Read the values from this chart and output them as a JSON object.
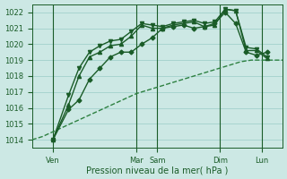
{
  "bg_color": "#cce8e4",
  "grid_color": "#99ccc6",
  "line_color_dark": "#1a5c28",
  "line_color_dashed": "#2d8040",
  "xlabel": "Pression niveau de la mer( hPa )",
  "ylim": [
    1013.5,
    1022.5
  ],
  "yticks": [
    1014,
    1015,
    1016,
    1017,
    1018,
    1019,
    1020,
    1021,
    1022
  ],
  "xlim": [
    0,
    24
  ],
  "vlines_x": [
    2.0,
    10.0,
    12.0,
    18.0,
    22.0
  ],
  "xtick_positions": [
    2.0,
    10.0,
    12.0,
    18.0,
    22.0
  ],
  "xtick_labels": [
    "Ven",
    "Mar",
    "Sam",
    "Dim",
    "Lun"
  ],
  "series_dashed": {
    "x": [
      0,
      1,
      2,
      3,
      4,
      5,
      6,
      7,
      8,
      9,
      10,
      11,
      12,
      13,
      14,
      15,
      16,
      17,
      18,
      19,
      20,
      21,
      22,
      23,
      24
    ],
    "y": [
      1014.0,
      1014.2,
      1014.5,
      1014.8,
      1015.1,
      1015.4,
      1015.7,
      1016.0,
      1016.3,
      1016.6,
      1016.9,
      1017.1,
      1017.3,
      1017.5,
      1017.7,
      1017.9,
      1018.1,
      1018.3,
      1018.5,
      1018.7,
      1018.9,
      1019.0,
      1019.0,
      1019.0,
      1019.0
    ]
  },
  "series_solid": [
    {
      "x": [
        2.0,
        3.5,
        4.5,
        5.5,
        6.5,
        7.5,
        8.5,
        9.5,
        10.5,
        11.5,
        12.5,
        13.5,
        14.5,
        15.5,
        16.5,
        17.5,
        18.5,
        19.5,
        20.5,
        21.5,
        22.5
      ],
      "y": [
        1014.0,
        1015.9,
        1016.5,
        1017.8,
        1018.5,
        1019.2,
        1019.5,
        1019.5,
        1020.0,
        1020.4,
        1021.0,
        1021.1,
        1021.2,
        1021.0,
        1021.1,
        1021.3,
        1022.0,
        1021.3,
        1019.5,
        1019.3,
        1019.5
      ],
      "marker": "D",
      "ms": 2.5
    },
    {
      "x": [
        2.0,
        3.5,
        4.5,
        5.5,
        6.5,
        7.5,
        8.5,
        9.5,
        10.5,
        11.5,
        12.5,
        13.5,
        14.5,
        15.5,
        16.5,
        17.5,
        18.5,
        19.5,
        20.5,
        21.5,
        22.5
      ],
      "y": [
        1014.0,
        1016.2,
        1018.0,
        1019.2,
        1019.5,
        1019.9,
        1020.0,
        1020.5,
        1021.2,
        1021.0,
        1021.0,
        1021.2,
        1021.3,
        1021.4,
        1021.1,
        1021.2,
        1022.2,
        1022.1,
        1019.6,
        1019.6,
        1019.1
      ],
      "marker": "^",
      "ms": 3.0
    },
    {
      "x": [
        2.0,
        3.5,
        4.5,
        5.5,
        6.5,
        7.5,
        8.5,
        9.5,
        10.5,
        11.5,
        12.5,
        13.5,
        14.5,
        15.5,
        16.5,
        17.5,
        18.5,
        19.5,
        20.5,
        21.5,
        22.5
      ],
      "y": [
        1014.0,
        1016.8,
        1018.5,
        1019.5,
        1019.9,
        1020.2,
        1020.3,
        1020.8,
        1021.3,
        1021.2,
        1021.1,
        1021.3,
        1021.4,
        1021.5,
        1021.3,
        1021.4,
        1022.2,
        1022.1,
        1019.8,
        1019.7,
        1019.2
      ],
      "marker": "v",
      "ms": 3.0
    }
  ]
}
